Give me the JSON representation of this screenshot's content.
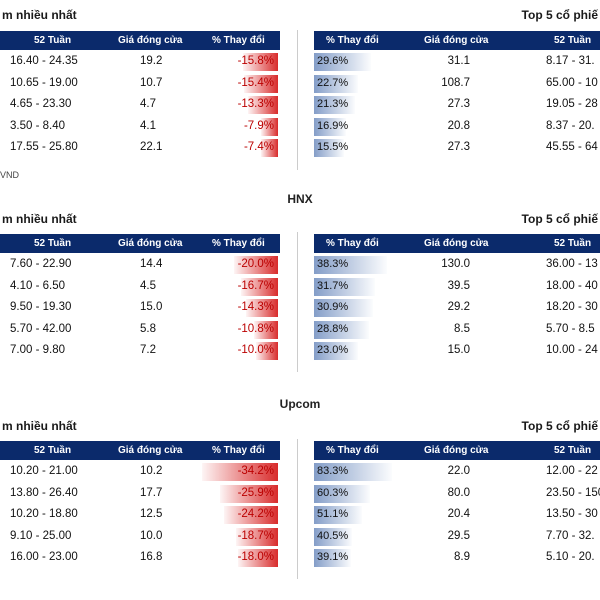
{
  "sections": [
    {
      "title": "",
      "left_title": "m nhiều nhất",
      "right_title": "Top 5 cổ phiế",
      "footnote": "VND",
      "left_headers": [
        "52 Tuần",
        "Giá đóng cửa",
        "% Thay đổi"
      ],
      "right_headers": [
        "% Thay đổi",
        "Giá đóng cửa",
        "52 Tuần"
      ],
      "left_rows": [
        {
          "range": "16.40 - 24.35",
          "close": "19.2",
          "change": "-15.8%",
          "pct": 0.46
        },
        {
          "range": "10.65 - 19.00",
          "close": "10.7",
          "change": "-15.4%",
          "pct": 0.45
        },
        {
          "range": "4.65 - 23.30",
          "close": "4.7",
          "change": "-13.3%",
          "pct": 0.39
        },
        {
          "range": "3.50 - 8.40",
          "close": "4.1",
          "change": "-7.9%",
          "pct": 0.23
        },
        {
          "range": "17.55 - 25.80",
          "close": "22.1",
          "change": "-7.4%",
          "pct": 0.22
        }
      ],
      "right_rows": [
        {
          "change": "29.6%",
          "close": "31.1",
          "range": "8.17 - 31.",
          "pct": 0.73
        },
        {
          "change": "22.7%",
          "close": "108.7",
          "range": "65.00 - 10",
          "pct": 0.56
        },
        {
          "change": "21.3%",
          "close": "27.3",
          "range": "19.05 - 28",
          "pct": 0.52
        },
        {
          "change": "16.9%",
          "close": "20.8",
          "range": "8.37 - 20.",
          "pct": 0.41
        },
        {
          "change": "15.5%",
          "close": "27.3",
          "range": "45.55 - 64",
          "pct": 0.38
        }
      ]
    },
    {
      "title": "HNX",
      "left_title": "m nhiều nhất",
      "right_title": "Top 5 cổ phiế",
      "footnote": "",
      "left_headers": [
        "52 Tuần",
        "Giá đóng cửa",
        "% Thay đổi"
      ],
      "right_headers": [
        "% Thay đổi",
        "Giá đóng cửa",
        "52 Tuần"
      ],
      "left_rows": [
        {
          "range": "7.60 - 22.90",
          "close": "14.4",
          "change": "-20.0%",
          "pct": 0.58
        },
        {
          "range": "4.10 - 6.50",
          "close": "4.5",
          "change": "-16.7%",
          "pct": 0.49
        },
        {
          "range": "9.50 - 19.30",
          "close": "15.0",
          "change": "-14.3%",
          "pct": 0.42
        },
        {
          "range": "5.70 - 42.00",
          "close": "5.8",
          "change": "-10.8%",
          "pct": 0.32
        },
        {
          "range": "7.00 - 9.80",
          "close": "7.2",
          "change": "-10.0%",
          "pct": 0.29
        }
      ],
      "right_rows": [
        {
          "change": "38.3%",
          "close": "130.0",
          "range": "36.00 - 13",
          "pct": 0.94
        },
        {
          "change": "31.7%",
          "close": "39.5",
          "range": "18.00 - 40",
          "pct": 0.78
        },
        {
          "change": "30.9%",
          "close": "29.2",
          "range": "18.20 - 30",
          "pct": 0.76
        },
        {
          "change": "28.8%",
          "close": "8.5",
          "range": "5.70 - 8.5",
          "pct": 0.71
        },
        {
          "change": "23.0%",
          "close": "15.0",
          "range": "10.00 - 24",
          "pct": 0.57
        }
      ]
    },
    {
      "title": "Upcom",
      "left_title": "m nhiều nhất",
      "right_title": "Top 5 cổ phiế",
      "footnote": "",
      "left_headers": [
        "52 Tuần",
        "Giá đóng cửa",
        "% Thay đổi"
      ],
      "right_headers": [
        "% Thay đổi",
        "Giá đóng cửa",
        "52 Tuần"
      ],
      "left_rows": [
        {
          "range": "10.20 - 21.00",
          "close": "10.2",
          "change": "-34.2%",
          "pct": 1.0
        },
        {
          "range": "13.80 - 26.40",
          "close": "17.7",
          "change": "-25.9%",
          "pct": 0.76
        },
        {
          "range": "10.20 - 18.80",
          "close": "12.5",
          "change": "-24.2%",
          "pct": 0.71
        },
        {
          "range": "9.10 - 25.00",
          "close": "10.0",
          "change": "-18.7%",
          "pct": 0.55
        },
        {
          "range": "16.00 - 23.00",
          "close": "16.8",
          "change": "-18.0%",
          "pct": 0.53
        }
      ],
      "right_rows": [
        {
          "change": "83.3%",
          "close": "22.0",
          "range": "12.00 - 22",
          "pct": 1.0
        },
        {
          "change": "60.3%",
          "close": "80.0",
          "range": "23.50 - 150",
          "pct": 0.72
        },
        {
          "change": "51.1%",
          "close": "20.4",
          "range": "13.50 - 30",
          "pct": 0.61
        },
        {
          "change": "40.5%",
          "close": "29.5",
          "range": "7.70 - 32.",
          "pct": 0.49
        },
        {
          "change": "39.1%",
          "close": "8.9",
          "range": "5.10 - 20.",
          "pct": 0.47
        }
      ]
    }
  ]
}
